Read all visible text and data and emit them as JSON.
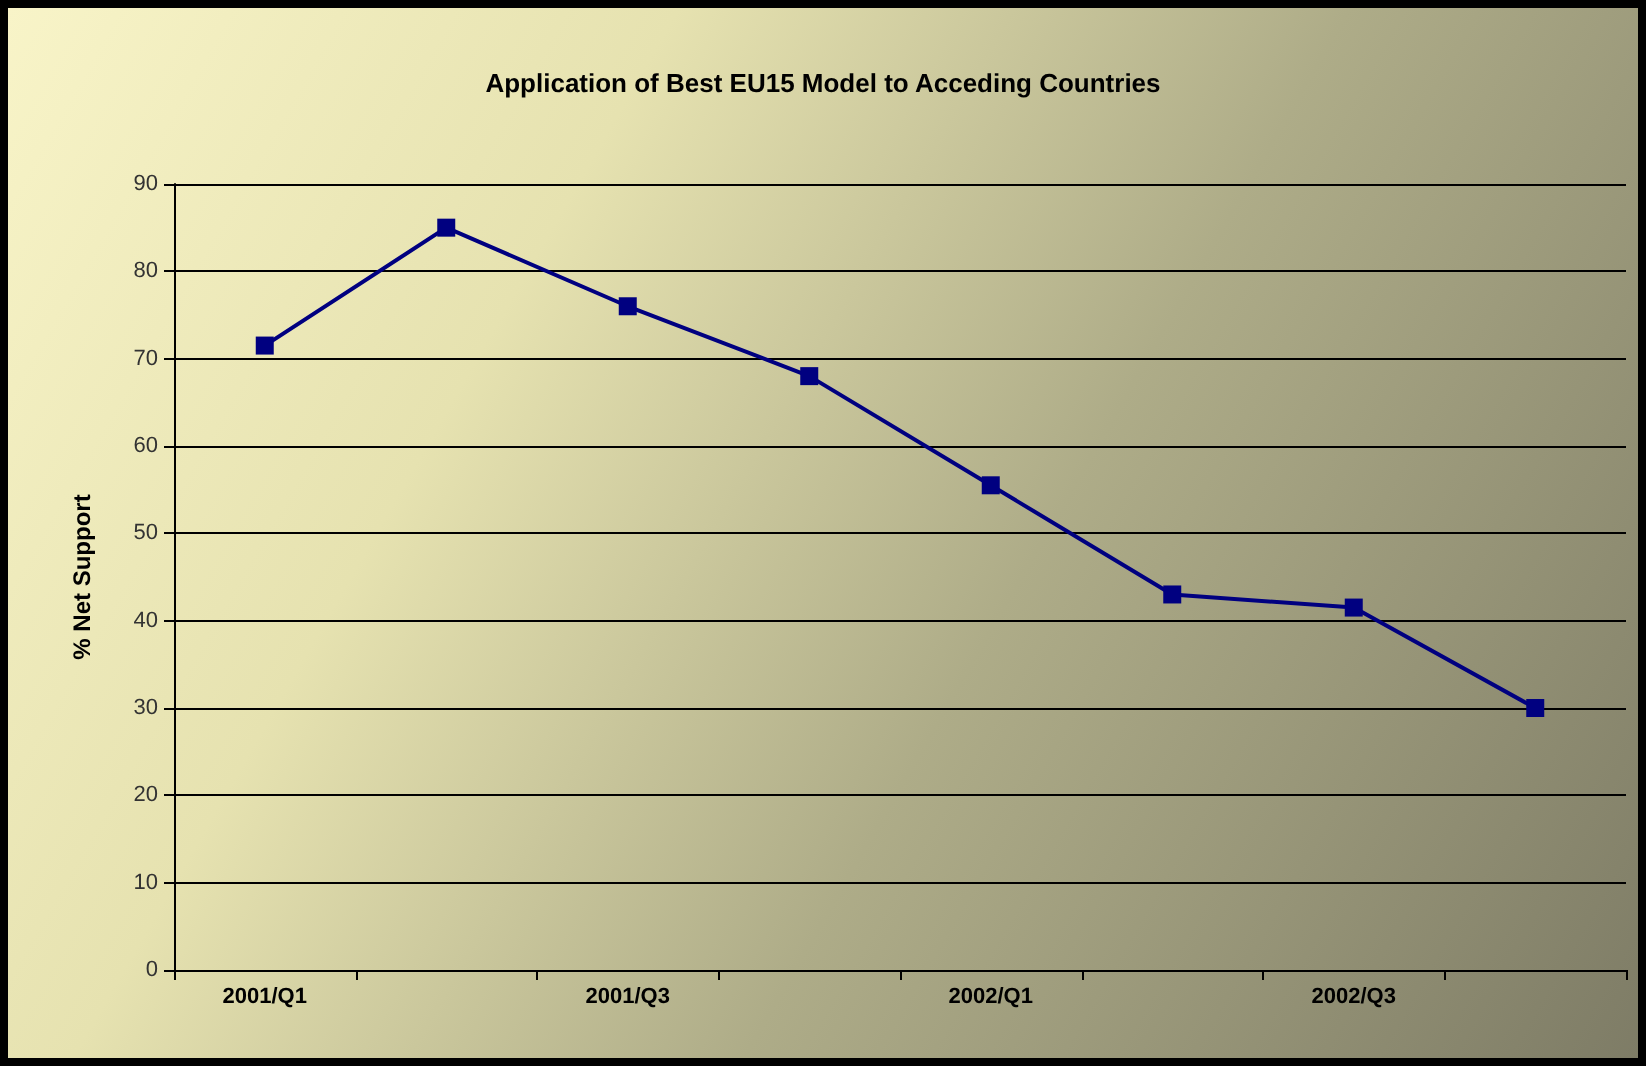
{
  "chart_data": {
    "type": "line",
    "title": "Application of Best EU15 Model to Acceding Countries",
    "ylabel": "% Net Support",
    "categories": [
      "2001/Q1",
      null,
      "2001/Q3",
      null,
      "2002/Q1",
      null,
      "2002/Q3",
      null
    ],
    "series": [
      {
        "color": "#000080",
        "values": [
          71.5,
          85,
          76,
          68,
          55.5,
          43,
          41.5,
          30
        ]
      }
    ],
    "ylim": [
      0,
      90
    ],
    "yticks": [
      0,
      10,
      20,
      30,
      40,
      50,
      60,
      70,
      80,
      90
    ],
    "grid": "y",
    "marker": "square",
    "line_style": "solid"
  }
}
